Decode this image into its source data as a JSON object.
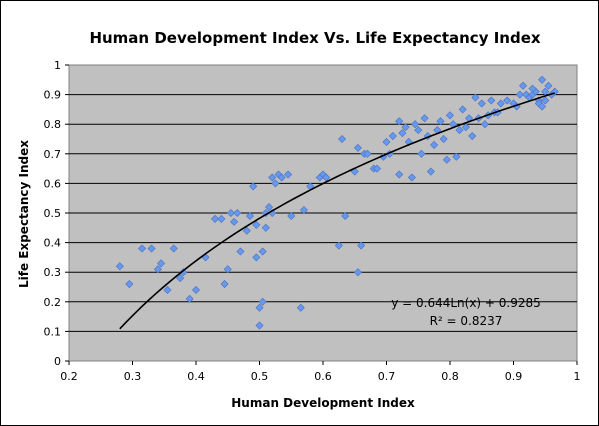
{
  "chart_data": {
    "type": "scatter",
    "title": "Human Development Index Vs. Life Expectancy Index",
    "xlabel": "Human Development Index",
    "ylabel": "Life Expectancy Index",
    "xlim": [
      0.2,
      1.0
    ],
    "ylim": [
      0,
      1
    ],
    "xticks": [
      "0.2",
      "0.3",
      "0.4",
      "0.5",
      "0.6",
      "0.7",
      "0.8",
      "0.9",
      "1"
    ],
    "yticks": [
      "0",
      "0.1",
      "0.2",
      "0.3",
      "0.4",
      "0.5",
      "0.6",
      "0.7",
      "0.8",
      "0.9",
      "1"
    ],
    "grid": "horizontal",
    "plot_background": "#c0c0c0",
    "marker_color": "#6699ee",
    "trendline": {
      "type": "logarithmic",
      "a": 0.644,
      "b": 0.9285,
      "x_range": [
        0.28,
        0.965
      ],
      "color": "#000000"
    },
    "equation_text": "y = 0.644Ln(x) + 0.9285",
    "r2_text": "R² = 0.8237",
    "points": [
      [
        0.28,
        0.32
      ],
      [
        0.295,
        0.26
      ],
      [
        0.315,
        0.38
      ],
      [
        0.33,
        0.38
      ],
      [
        0.34,
        0.31
      ],
      [
        0.345,
        0.33
      ],
      [
        0.355,
        0.24
      ],
      [
        0.365,
        0.38
      ],
      [
        0.375,
        0.28
      ],
      [
        0.38,
        0.3
      ],
      [
        0.39,
        0.21
      ],
      [
        0.4,
        0.24
      ],
      [
        0.415,
        0.35
      ],
      [
        0.43,
        0.48
      ],
      [
        0.44,
        0.48
      ],
      [
        0.445,
        0.26
      ],
      [
        0.45,
        0.31
      ],
      [
        0.455,
        0.5
      ],
      [
        0.46,
        0.47
      ],
      [
        0.465,
        0.5
      ],
      [
        0.47,
        0.37
      ],
      [
        0.48,
        0.44
      ],
      [
        0.485,
        0.49
      ],
      [
        0.49,
        0.59
      ],
      [
        0.495,
        0.46
      ],
      [
        0.495,
        0.35
      ],
      [
        0.5,
        0.18
      ],
      [
        0.5,
        0.12
      ],
      [
        0.505,
        0.2
      ],
      [
        0.505,
        0.37
      ],
      [
        0.51,
        0.45
      ],
      [
        0.51,
        0.5
      ],
      [
        0.515,
        0.52
      ],
      [
        0.52,
        0.62
      ],
      [
        0.52,
        0.5
      ],
      [
        0.525,
        0.6
      ],
      [
        0.53,
        0.63
      ],
      [
        0.535,
        0.62
      ],
      [
        0.545,
        0.63
      ],
      [
        0.55,
        0.49
      ],
      [
        0.565,
        0.18
      ],
      [
        0.57,
        0.51
      ],
      [
        0.58,
        0.59
      ],
      [
        0.595,
        0.62
      ],
      [
        0.6,
        0.63
      ],
      [
        0.605,
        0.62
      ],
      [
        0.625,
        0.39
      ],
      [
        0.63,
        0.75
      ],
      [
        0.635,
        0.49
      ],
      [
        0.65,
        0.64
      ],
      [
        0.655,
        0.3
      ],
      [
        0.655,
        0.72
      ],
      [
        0.66,
        0.39
      ],
      [
        0.665,
        0.7
      ],
      [
        0.67,
        0.7
      ],
      [
        0.68,
        0.65
      ],
      [
        0.685,
        0.65
      ],
      [
        0.695,
        0.69
      ],
      [
        0.7,
        0.74
      ],
      [
        0.705,
        0.7
      ],
      [
        0.71,
        0.76
      ],
      [
        0.72,
        0.63
      ],
      [
        0.72,
        0.81
      ],
      [
        0.725,
        0.77
      ],
      [
        0.73,
        0.79
      ],
      [
        0.735,
        0.74
      ],
      [
        0.74,
        0.62
      ],
      [
        0.745,
        0.8
      ],
      [
        0.75,
        0.78
      ],
      [
        0.755,
        0.7
      ],
      [
        0.76,
        0.82
      ],
      [
        0.765,
        0.76
      ],
      [
        0.77,
        0.64
      ],
      [
        0.775,
        0.73
      ],
      [
        0.78,
        0.78
      ],
      [
        0.785,
        0.81
      ],
      [
        0.79,
        0.75
      ],
      [
        0.795,
        0.68
      ],
      [
        0.8,
        0.83
      ],
      [
        0.805,
        0.8
      ],
      [
        0.81,
        0.69
      ],
      [
        0.815,
        0.78
      ],
      [
        0.82,
        0.85
      ],
      [
        0.825,
        0.79
      ],
      [
        0.83,
        0.82
      ],
      [
        0.835,
        0.76
      ],
      [
        0.84,
        0.89
      ],
      [
        0.845,
        0.82
      ],
      [
        0.85,
        0.87
      ],
      [
        0.855,
        0.8
      ],
      [
        0.86,
        0.83
      ],
      [
        0.865,
        0.88
      ],
      [
        0.87,
        0.84
      ],
      [
        0.875,
        0.84
      ],
      [
        0.88,
        0.87
      ],
      [
        0.89,
        0.88
      ],
      [
        0.9,
        0.87
      ],
      [
        0.905,
        0.86
      ],
      [
        0.91,
        0.9
      ],
      [
        0.915,
        0.93
      ],
      [
        0.92,
        0.9
      ],
      [
        0.925,
        0.89
      ],
      [
        0.93,
        0.9
      ],
      [
        0.935,
        0.91
      ],
      [
        0.94,
        0.88
      ],
      [
        0.945,
        0.95
      ],
      [
        0.95,
        0.91
      ],
      [
        0.955,
        0.93
      ],
      [
        0.96,
        0.9
      ],
      [
        0.965,
        0.91
      ],
      [
        0.94,
        0.87
      ],
      [
        0.95,
        0.88
      ],
      [
        0.93,
        0.92
      ],
      [
        0.945,
        0.86
      ]
    ]
  }
}
